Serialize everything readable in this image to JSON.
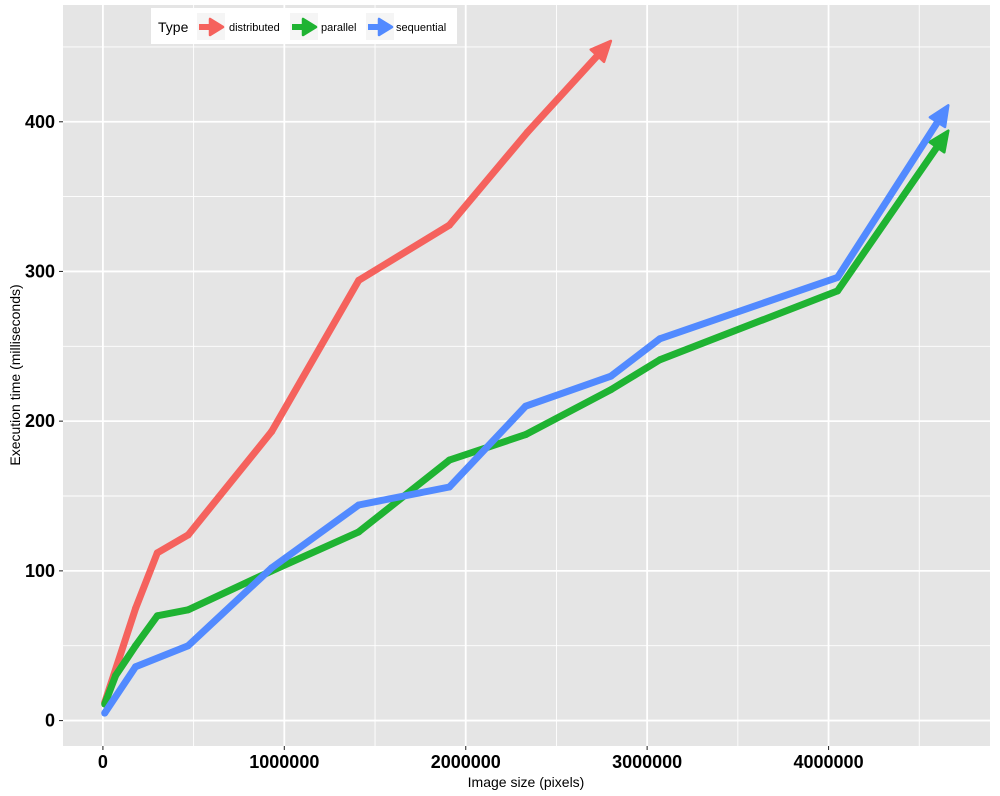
{
  "chart_data": {
    "type": "line",
    "xlabel": "Image size (pixels)",
    "ylabel": "Execution time (milliseconds)",
    "xlim": [
      -220000,
      4890000
    ],
    "ylim": [
      -17,
      478
    ],
    "x_ticks": [
      0,
      1000000,
      2000000,
      3000000,
      4000000
    ],
    "x_tick_labels": [
      "0",
      "1000000",
      "2000000",
      "3000000",
      "4000000"
    ],
    "y_ticks": [
      0,
      100,
      200,
      300,
      400
    ],
    "y_tick_labels": [
      "0",
      "100",
      "200",
      "300",
      "400"
    ],
    "grid": true,
    "arrowheads": true,
    "legend_title": "Type",
    "legend_placement": "top-left",
    "panel_color": "#E5E5E5",
    "grid_color": "#FFFFFF",
    "series": [
      {
        "name": "distributed",
        "color": "#F5625D",
        "x": [
          10000,
          180000,
          300000,
          470000,
          930000,
          1410000,
          1910000,
          2340000,
          2800000
        ],
        "y": [
          12,
          75,
          112,
          124,
          193,
          294,
          331,
          393,
          454
        ]
      },
      {
        "name": "parallel",
        "color": "#1FB332",
        "x": [
          10000,
          70000,
          180000,
          300000,
          470000,
          930000,
          1410000,
          1910000,
          2330000,
          2800000,
          3070000,
          4050000,
          4660000
        ],
        "y": [
          11,
          30,
          50,
          70,
          74,
          100,
          126,
          174,
          191,
          221,
          241,
          287,
          394
        ]
      },
      {
        "name": "sequential",
        "color": "#528AFF",
        "x": [
          10000,
          180000,
          470000,
          930000,
          1410000,
          1910000,
          2330000,
          2800000,
          3070000,
          4050000,
          4660000
        ],
        "y": [
          5,
          36,
          50,
          102,
          144,
          156,
          210,
          230,
          255,
          296,
          411
        ]
      }
    ]
  }
}
